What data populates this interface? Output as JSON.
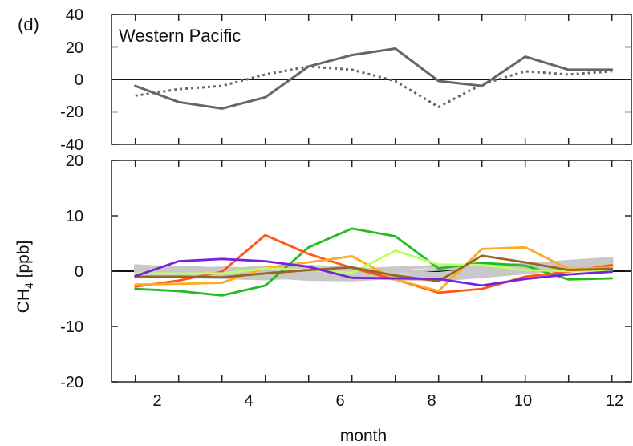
{
  "chart_data": [
    {
      "type": "line",
      "panel_label": "(d)",
      "title": "Western Pacific",
      "x": [
        1,
        2,
        3,
        4,
        5,
        6,
        7,
        8,
        9,
        10,
        11,
        12
      ],
      "xlim": [
        0.45,
        12.45
      ],
      "ylim": [
        -40,
        40
      ],
      "yticks": [
        40,
        20,
        0,
        -20,
        -40
      ],
      "zero_line": true,
      "series": [
        {
          "style": "solid",
          "color": "#666666",
          "values": [
            -4,
            -14,
            -18,
            -11,
            8,
            15,
            19,
            -1,
            -4,
            14,
            6,
            6
          ]
        },
        {
          "style": "dashed",
          "color": "#666666",
          "values": [
            -10,
            -6,
            -4,
            3,
            8,
            6,
            -1,
            -17,
            -3,
            5,
            3,
            5
          ]
        }
      ]
    },
    {
      "type": "line",
      "ylabel": "CH",
      "ylabel_sub": "4",
      "ylabel_unit": " [ppb]",
      "xlabel": "month",
      "x": [
        1,
        2,
        3,
        4,
        5,
        6,
        7,
        8,
        9,
        10,
        11,
        12
      ],
      "xlim": [
        0.45,
        12.45
      ],
      "xticks": [
        2,
        4,
        6,
        8,
        10,
        12
      ],
      "ylim": [
        -20,
        20
      ],
      "yticks": [
        20,
        10,
        0,
        -10,
        -20
      ],
      "zero_line": true,
      "series": [
        {
          "color": "#c8c8c8",
          "values": [
            0.8,
            0.4,
            -0.2,
            -0.8,
            -1.2,
            -1.3,
            -0.8,
            -0.4,
            0.4,
            1.2,
            1.8,
            2.3
          ]
        },
        {
          "color": "#c8c8c8",
          "values": [
            0.3,
            -0.2,
            -0.6,
            -1.1,
            -1.0,
            -0.6,
            -0.2,
            0.3,
            0.8,
            1.3,
            1.6,
            1.9
          ]
        },
        {
          "color": "#c8c8c8",
          "values": [
            -0.3,
            -0.6,
            -0.9,
            -0.6,
            -0.3,
            0.2,
            0.6,
            0.8,
            0.6,
            0.3,
            0.8,
            1.4
          ]
        },
        {
          "color": "#c8c8c8",
          "values": [
            0.5,
            0.8,
            0.4,
            -0.2,
            -0.7,
            -1.0,
            -1.3,
            -1.1,
            -0.6,
            0.0,
            0.9,
            1.6
          ]
        },
        {
          "color": "#c8c8c8",
          "values": [
            -0.8,
            -1.0,
            -1.2,
            -1.4,
            -1.0,
            -0.4,
            0.3,
            1.0,
            1.2,
            0.8,
            0.3,
            0.6
          ]
        },
        {
          "color": "#c8c8c8",
          "values": [
            1.0,
            0.6,
            0.0,
            -0.4,
            -0.8,
            -1.1,
            -1.4,
            -1.6,
            -1.0,
            -0.3,
            0.4,
            1.0
          ]
        },
        {
          "color": "#c8c8c8",
          "values": [
            0.0,
            0.3,
            0.6,
            0.3,
            -0.2,
            -0.8,
            -1.0,
            -0.6,
            0.0,
            0.6,
            1.2,
            1.8
          ]
        },
        {
          "color": "#c8c8c8",
          "values": [
            -0.5,
            -0.3,
            0.2,
            0.8,
            0.4,
            -0.2,
            -0.6,
            -1.0,
            -0.8,
            -0.2,
            0.5,
            2.0
          ]
        },
        {
          "color": "#c8c8c8",
          "values": [
            0.6,
            0.1,
            -0.4,
            -1.0,
            -1.5,
            -1.6,
            -1.2,
            -0.8,
            -0.5,
            0.2,
            1.0,
            1.2
          ]
        },
        {
          "color": "#c8c8c8",
          "values": [
            -0.2,
            0.0,
            0.3,
            0.6,
            0.9,
            0.5,
            0.0,
            -0.5,
            -0.2,
            0.4,
            1.4,
            2.2
          ]
        },
        {
          "color": "#22bb22",
          "values": [
            -3.2,
            -3.6,
            -4.4,
            -2.6,
            4.3,
            7.7,
            6.3,
            0.5,
            1.5,
            1.0,
            -1.5,
            -1.3
          ]
        },
        {
          "color": "#ff5511",
          "values": [
            -2.8,
            -1.7,
            -0.1,
            6.5,
            3.1,
            0.6,
            -1.5,
            -3.9,
            -3.2,
            -1.0,
            -0.1,
            1.1
          ]
        },
        {
          "color": "#ffaa22",
          "values": [
            -2.4,
            -2.3,
            -2.1,
            0.6,
            1.6,
            2.7,
            -1.5,
            -3.6,
            4.0,
            4.3,
            0.4,
            0.6
          ]
        },
        {
          "color": "#bbff66",
          "values": [
            -0.4,
            -0.4,
            -0.4,
            0.5,
            0.2,
            -0.3,
            3.7,
            1.2,
            1.1,
            0.2,
            0.0,
            0.1
          ]
        },
        {
          "color": "#996622",
          "values": [
            -1.0,
            -1.0,
            -1.1,
            -0.4,
            0.2,
            0.7,
            -0.8,
            -1.8,
            2.8,
            1.6,
            0.2,
            0.4
          ]
        },
        {
          "color": "#7722dd",
          "values": [
            -0.9,
            1.8,
            2.2,
            1.8,
            0.8,
            -1.2,
            -1.3,
            -1.4,
            -2.6,
            -1.4,
            -0.6,
            -0.1
          ]
        }
      ]
    }
  ]
}
